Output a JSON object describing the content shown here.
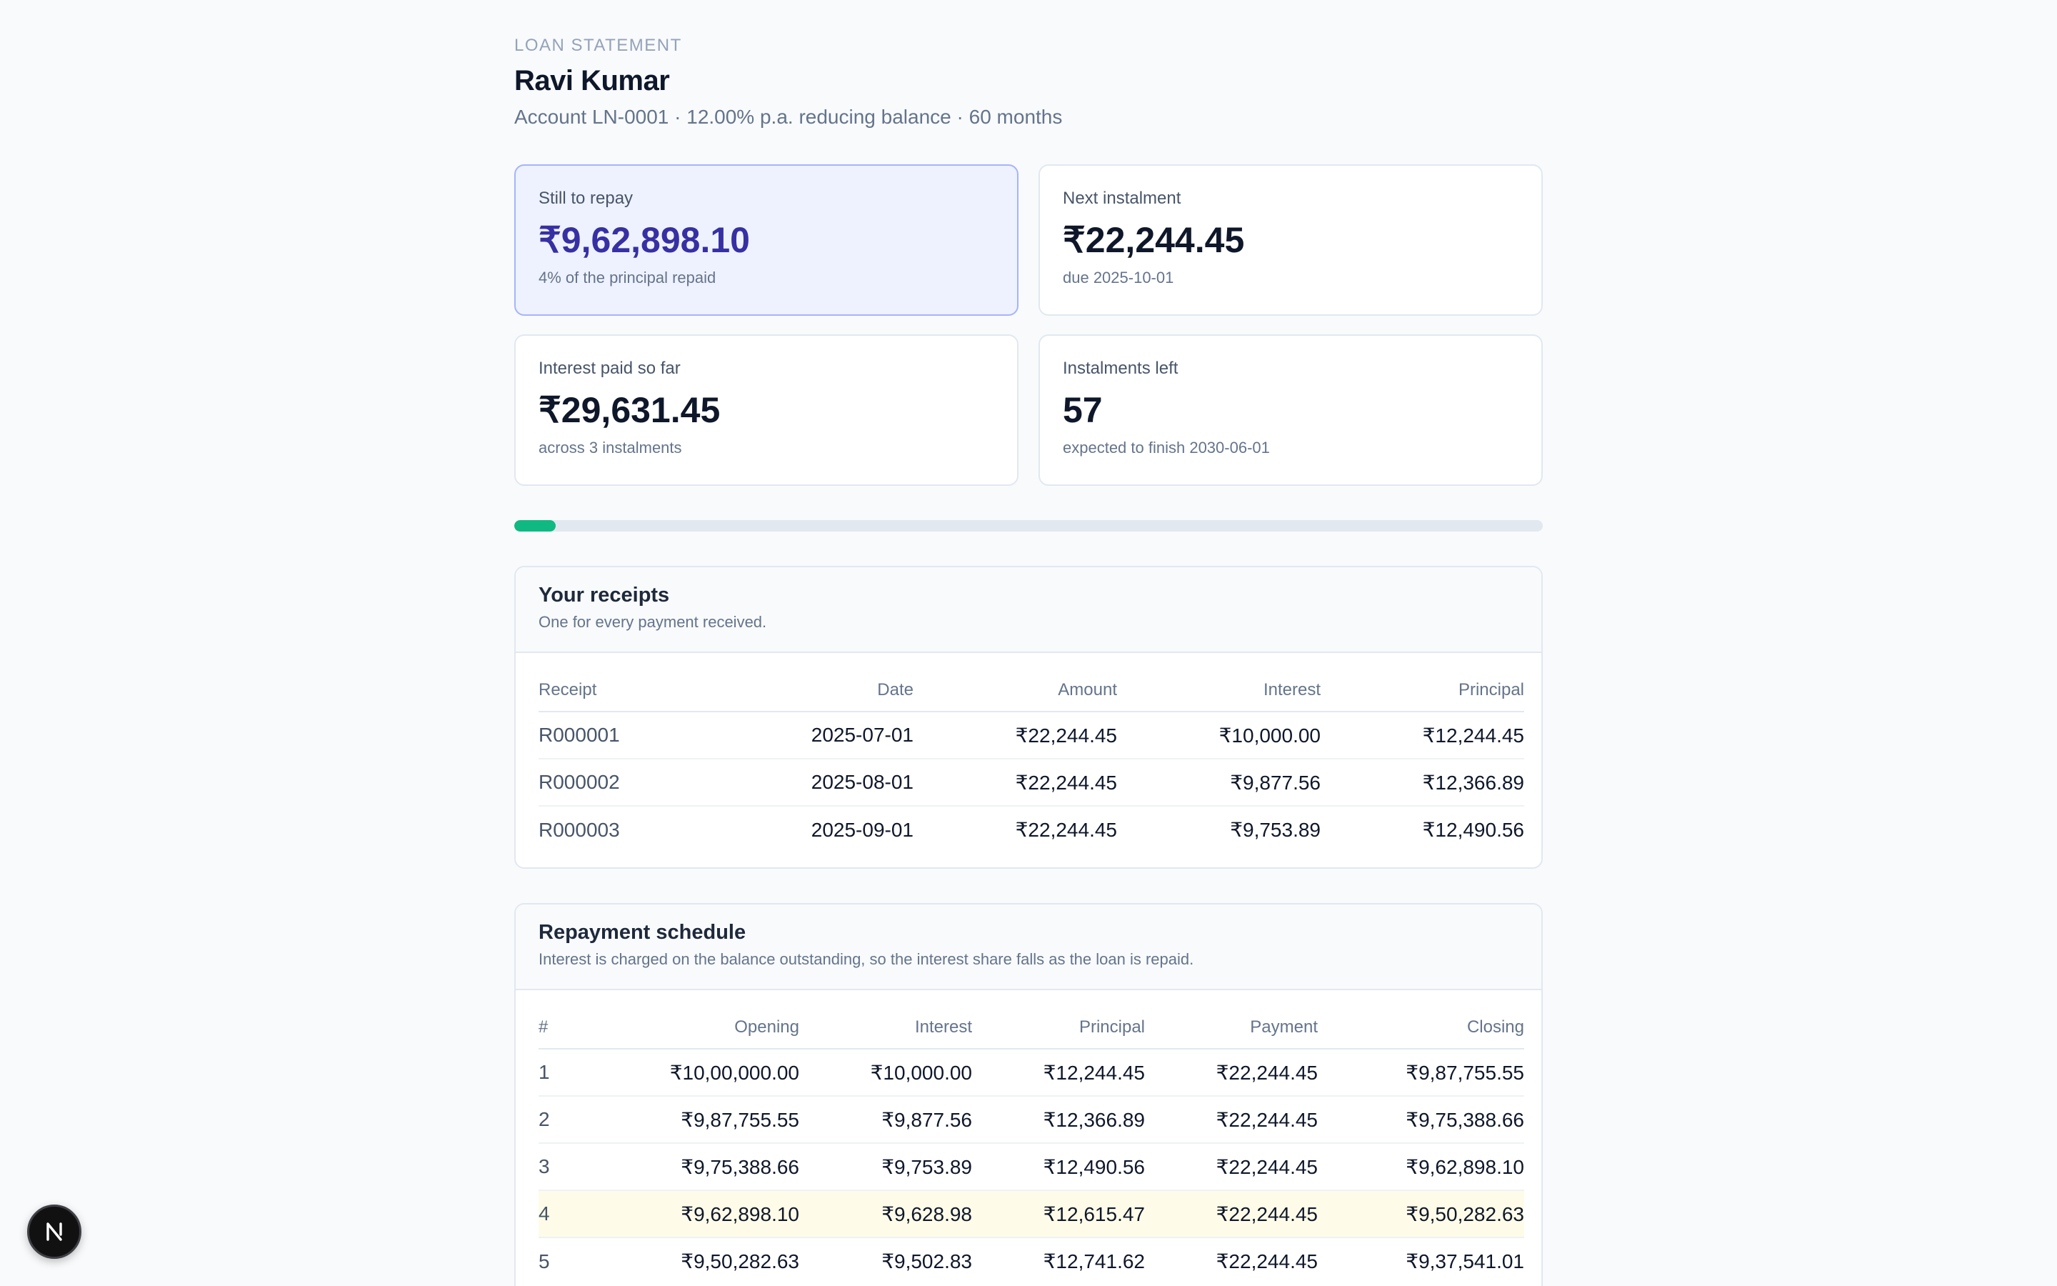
{
  "header": {
    "eyebrow": "LOAN STATEMENT",
    "name": "Ravi Kumar",
    "subline": "Account LN-0001 · 12.00% p.a. reducing balance · 60 months"
  },
  "cards": {
    "still_to_repay": {
      "label": "Still to repay",
      "value": "₹9,62,898.10",
      "note": "4% of the principal repaid"
    },
    "next_instalment": {
      "label": "Next instalment",
      "value": "₹22,244.45",
      "note": "due 2025-10-01"
    },
    "interest_paid": {
      "label": "Interest paid so far",
      "value": "₹29,631.45",
      "note": "across 3 instalments"
    },
    "instalments_left": {
      "label": "Instalments left",
      "value": "57",
      "note": "expected to finish 2030-06-01"
    }
  },
  "progress": {
    "fraction_repaid": 0.04,
    "fill_color": "#10b981",
    "track_color": "#e2e8f0"
  },
  "receipts": {
    "title": "Your receipts",
    "subtitle": "One for every payment received.",
    "columns": [
      "Receipt",
      "Date",
      "Amount",
      "Interest",
      "Principal"
    ],
    "rows": [
      [
        "R000001",
        "2025-07-01",
        "₹22,244.45",
        "₹10,000.00",
        "₹12,244.45"
      ],
      [
        "R000002",
        "2025-08-01",
        "₹22,244.45",
        "₹9,877.56",
        "₹12,366.89"
      ],
      [
        "R000003",
        "2025-09-01",
        "₹22,244.45",
        "₹9,753.89",
        "₹12,490.56"
      ]
    ]
  },
  "schedule": {
    "title": "Repayment schedule",
    "subtitle": "Interest is charged on the balance outstanding, so the interest share falls as the loan is repaid.",
    "columns": [
      "#",
      "Opening",
      "Interest",
      "Principal",
      "Payment",
      "Closing"
    ],
    "rows": [
      [
        "1",
        "₹10,00,000.00",
        "₹10,000.00",
        "₹12,244.45",
        "₹22,244.45",
        "₹9,87,755.55"
      ],
      [
        "2",
        "₹9,87,755.55",
        "₹9,877.56",
        "₹12,366.89",
        "₹22,244.45",
        "₹9,75,388.66"
      ],
      [
        "3",
        "₹9,75,388.66",
        "₹9,753.89",
        "₹12,490.56",
        "₹22,244.45",
        "₹9,62,898.10"
      ],
      [
        "4",
        "₹9,62,898.10",
        "₹9,628.98",
        "₹12,615.47",
        "₹22,244.45",
        "₹9,50,282.63"
      ],
      [
        "5",
        "₹9,50,282.63",
        "₹9,502.83",
        "₹12,741.62",
        "₹22,244.45",
        "₹9,37,541.01"
      ]
    ],
    "highlight_row_number": "4"
  },
  "badge": {
    "letter": "N",
    "icon": "nextjs-logo-icon"
  },
  "colors": {
    "accent": "#3730a3",
    "accent_bg": "#eef2ff",
    "highlight_row": "#fefce8"
  }
}
